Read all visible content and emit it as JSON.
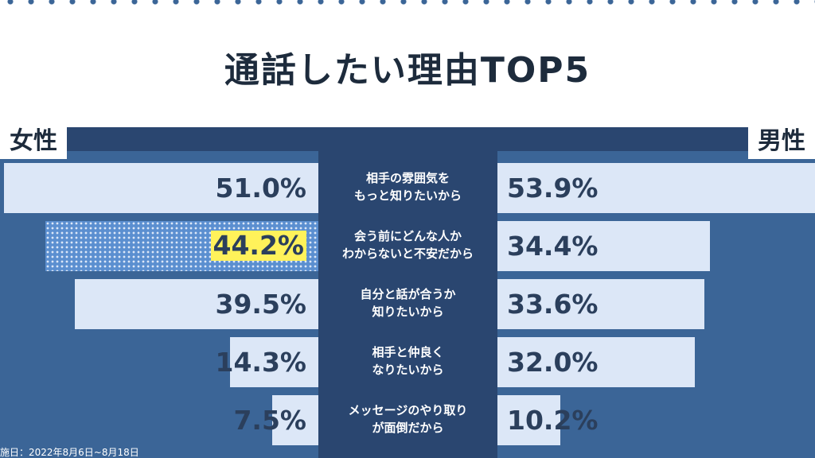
{
  "chart_data": {
    "type": "butterfly",
    "title": "通話したい理由TOP5",
    "categories": [
      "相手の雰囲気を\nもっと知りたいから",
      "会う前にどんな人か\nわからないと不安だから",
      "自分と話が合うか\n知りたいから",
      "相手と仲良く\nなりたいから",
      "メッセージのやり取り\nが面倒だから"
    ],
    "series": [
      {
        "name": "女性",
        "color": "#dce7f7",
        "values": [
          51.0,
          44.2,
          39.5,
          14.3,
          7.5
        ],
        "value_labels": [
          "51.0%",
          "44.2%",
          "39.5%",
          "14.3%",
          "7.5%"
        ]
      },
      {
        "name": "男性",
        "color": "#dce7f7",
        "values": [
          53.9,
          34.4,
          33.6,
          32.0,
          10.2
        ],
        "value_labels": [
          "53.9%",
          "34.4%",
          "33.6%",
          "32.0%",
          "10.2%"
        ]
      }
    ],
    "highlight": {
      "series": 0,
      "index": 1,
      "color": "#fff25a"
    },
    "footnote": "施日：2022年8月6日~8月18日"
  }
}
